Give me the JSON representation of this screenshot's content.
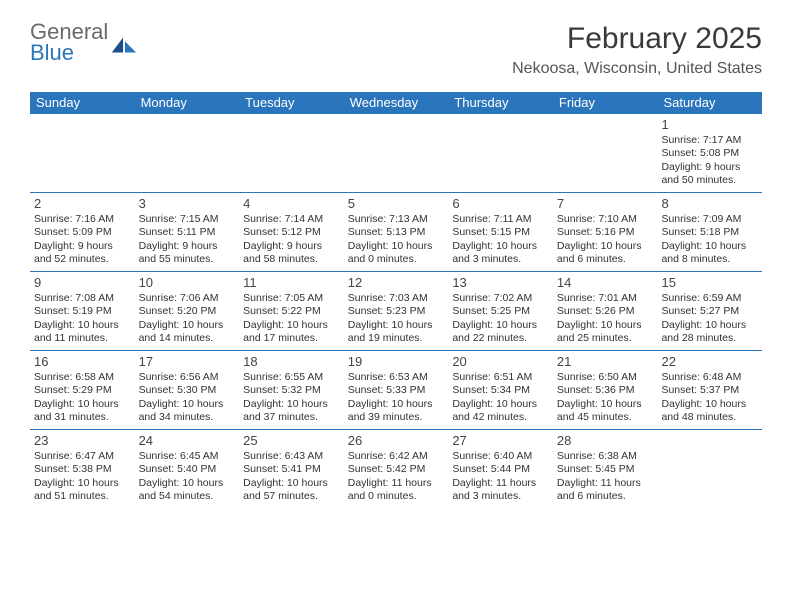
{
  "logo": {
    "line1": "General",
    "line2": "Blue",
    "color1": "#6a6a6a",
    "color2": "#2a75bb"
  },
  "title": "February 2025",
  "location": "Nekoosa, Wisconsin, United States",
  "header_bg": "#2a75bb",
  "row_border": "#2a75bb",
  "dayNames": [
    "Sunday",
    "Monday",
    "Tuesday",
    "Wednesday",
    "Thursday",
    "Friday",
    "Saturday"
  ],
  "weeks": [
    [
      null,
      null,
      null,
      null,
      null,
      null,
      {
        "n": "1",
        "sr": "Sunrise: 7:17 AM",
        "ss": "Sunset: 5:08 PM",
        "dl1": "Daylight: 9 hours",
        "dl2": "and 50 minutes."
      }
    ],
    [
      {
        "n": "2",
        "sr": "Sunrise: 7:16 AM",
        "ss": "Sunset: 5:09 PM",
        "dl1": "Daylight: 9 hours",
        "dl2": "and 52 minutes."
      },
      {
        "n": "3",
        "sr": "Sunrise: 7:15 AM",
        "ss": "Sunset: 5:11 PM",
        "dl1": "Daylight: 9 hours",
        "dl2": "and 55 minutes."
      },
      {
        "n": "4",
        "sr": "Sunrise: 7:14 AM",
        "ss": "Sunset: 5:12 PM",
        "dl1": "Daylight: 9 hours",
        "dl2": "and 58 minutes."
      },
      {
        "n": "5",
        "sr": "Sunrise: 7:13 AM",
        "ss": "Sunset: 5:13 PM",
        "dl1": "Daylight: 10 hours",
        "dl2": "and 0 minutes."
      },
      {
        "n": "6",
        "sr": "Sunrise: 7:11 AM",
        "ss": "Sunset: 5:15 PM",
        "dl1": "Daylight: 10 hours",
        "dl2": "and 3 minutes."
      },
      {
        "n": "7",
        "sr": "Sunrise: 7:10 AM",
        "ss": "Sunset: 5:16 PM",
        "dl1": "Daylight: 10 hours",
        "dl2": "and 6 minutes."
      },
      {
        "n": "8",
        "sr": "Sunrise: 7:09 AM",
        "ss": "Sunset: 5:18 PM",
        "dl1": "Daylight: 10 hours",
        "dl2": "and 8 minutes."
      }
    ],
    [
      {
        "n": "9",
        "sr": "Sunrise: 7:08 AM",
        "ss": "Sunset: 5:19 PM",
        "dl1": "Daylight: 10 hours",
        "dl2": "and 11 minutes."
      },
      {
        "n": "10",
        "sr": "Sunrise: 7:06 AM",
        "ss": "Sunset: 5:20 PM",
        "dl1": "Daylight: 10 hours",
        "dl2": "and 14 minutes."
      },
      {
        "n": "11",
        "sr": "Sunrise: 7:05 AM",
        "ss": "Sunset: 5:22 PM",
        "dl1": "Daylight: 10 hours",
        "dl2": "and 17 minutes."
      },
      {
        "n": "12",
        "sr": "Sunrise: 7:03 AM",
        "ss": "Sunset: 5:23 PM",
        "dl1": "Daylight: 10 hours",
        "dl2": "and 19 minutes."
      },
      {
        "n": "13",
        "sr": "Sunrise: 7:02 AM",
        "ss": "Sunset: 5:25 PM",
        "dl1": "Daylight: 10 hours",
        "dl2": "and 22 minutes."
      },
      {
        "n": "14",
        "sr": "Sunrise: 7:01 AM",
        "ss": "Sunset: 5:26 PM",
        "dl1": "Daylight: 10 hours",
        "dl2": "and 25 minutes."
      },
      {
        "n": "15",
        "sr": "Sunrise: 6:59 AM",
        "ss": "Sunset: 5:27 PM",
        "dl1": "Daylight: 10 hours",
        "dl2": "and 28 minutes."
      }
    ],
    [
      {
        "n": "16",
        "sr": "Sunrise: 6:58 AM",
        "ss": "Sunset: 5:29 PM",
        "dl1": "Daylight: 10 hours",
        "dl2": "and 31 minutes."
      },
      {
        "n": "17",
        "sr": "Sunrise: 6:56 AM",
        "ss": "Sunset: 5:30 PM",
        "dl1": "Daylight: 10 hours",
        "dl2": "and 34 minutes."
      },
      {
        "n": "18",
        "sr": "Sunrise: 6:55 AM",
        "ss": "Sunset: 5:32 PM",
        "dl1": "Daylight: 10 hours",
        "dl2": "and 37 minutes."
      },
      {
        "n": "19",
        "sr": "Sunrise: 6:53 AM",
        "ss": "Sunset: 5:33 PM",
        "dl1": "Daylight: 10 hours",
        "dl2": "and 39 minutes."
      },
      {
        "n": "20",
        "sr": "Sunrise: 6:51 AM",
        "ss": "Sunset: 5:34 PM",
        "dl1": "Daylight: 10 hours",
        "dl2": "and 42 minutes."
      },
      {
        "n": "21",
        "sr": "Sunrise: 6:50 AM",
        "ss": "Sunset: 5:36 PM",
        "dl1": "Daylight: 10 hours",
        "dl2": "and 45 minutes."
      },
      {
        "n": "22",
        "sr": "Sunrise: 6:48 AM",
        "ss": "Sunset: 5:37 PM",
        "dl1": "Daylight: 10 hours",
        "dl2": "and 48 minutes."
      }
    ],
    [
      {
        "n": "23",
        "sr": "Sunrise: 6:47 AM",
        "ss": "Sunset: 5:38 PM",
        "dl1": "Daylight: 10 hours",
        "dl2": "and 51 minutes."
      },
      {
        "n": "24",
        "sr": "Sunrise: 6:45 AM",
        "ss": "Sunset: 5:40 PM",
        "dl1": "Daylight: 10 hours",
        "dl2": "and 54 minutes."
      },
      {
        "n": "25",
        "sr": "Sunrise: 6:43 AM",
        "ss": "Sunset: 5:41 PM",
        "dl1": "Daylight: 10 hours",
        "dl2": "and 57 minutes."
      },
      {
        "n": "26",
        "sr": "Sunrise: 6:42 AM",
        "ss": "Sunset: 5:42 PM",
        "dl1": "Daylight: 11 hours",
        "dl2": "and 0 minutes."
      },
      {
        "n": "27",
        "sr": "Sunrise: 6:40 AM",
        "ss": "Sunset: 5:44 PM",
        "dl1": "Daylight: 11 hours",
        "dl2": "and 3 minutes."
      },
      {
        "n": "28",
        "sr": "Sunrise: 6:38 AM",
        "ss": "Sunset: 5:45 PM",
        "dl1": "Daylight: 11 hours",
        "dl2": "and 6 minutes."
      },
      null
    ]
  ]
}
